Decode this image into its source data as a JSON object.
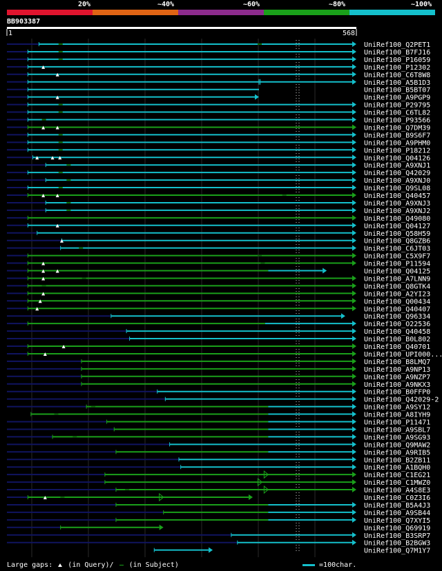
{
  "query_id": "BB903387",
  "scale": {
    "start_label": "1",
    "end_label": "568",
    "length": 568
  },
  "identity_legend": [
    {
      "label": "20%",
      "color": "#e0142e"
    },
    {
      "label": "~40%",
      "color": "#e06414"
    },
    {
      "label": "~60%",
      "color": "#8c2b8c"
    },
    {
      "label": "~80%",
      "color": "#1aa01a"
    },
    {
      "label": "~100%",
      "color": "#14c0cc"
    }
  ],
  "colors": {
    "cyan": "#14c0cc",
    "green": "#1aa01a",
    "navy": "#101460",
    "background": "#000000",
    "grid": "#2a2a2a"
  },
  "footer": {
    "large_gaps_label": "Large gaps:",
    "in_query_label": "(in Query)/",
    "in_subject_label": "(in Subject)",
    "bar_scale_label": "=100char."
  },
  "chart_data": {
    "type": "alignment-overview",
    "x_range": [
      1,
      568
    ],
    "hits": [
      {
        "label": "UniRef100_Q2PET1",
        "lead": 1,
        "start": 53,
        "end": 568,
        "color": "cyan",
        "arrow": true,
        "query_gaps": [],
        "subject_gaps": [
          87,
          410
        ]
      },
      {
        "label": "UniRef100_B7FJ16",
        "lead": 1,
        "start": 35,
        "end": 568,
        "color": "cyan",
        "arrow": true,
        "query_gaps": [],
        "subject_gaps": [
          87
        ]
      },
      {
        "label": "UniRef100_P16059",
        "lead": 1,
        "start": 35,
        "end": 568,
        "color": "cyan",
        "arrow": true,
        "query_gaps": [],
        "subject_gaps": [
          87
        ]
      },
      {
        "label": "UniRef100_P12302",
        "lead": 1,
        "start": 35,
        "end": 568,
        "color": "cyan",
        "arrow": true,
        "query_gaps": [
          60
        ],
        "subject_gaps": []
      },
      {
        "label": "UniRef100_C6T8W8",
        "lead": 1,
        "start": 35,
        "end": 568,
        "color": "cyan",
        "arrow": true,
        "query_gaps": [
          83
        ],
        "subject_gaps": []
      },
      {
        "label": "UniRef100_A5B1D3",
        "lead": 1,
        "start": 35,
        "end": 568,
        "color": "cyan",
        "arrow": true,
        "query_gaps": [],
        "subject_gaps": [],
        "end_ticks": [
          410,
          412
        ]
      },
      {
        "label": "UniRef100_B5BT07",
        "lead": 1,
        "start": 35,
        "end": 410,
        "color": "cyan",
        "arrow": false,
        "query_gaps": [],
        "subject_gaps": []
      },
      {
        "label": "UniRef100_A9PGP9",
        "lead": 1,
        "start": 35,
        "end": 410,
        "color": "cyan",
        "arrow": true,
        "query_gaps": [
          83
        ],
        "subject_gaps": []
      },
      {
        "label": "UniRef100_P29795",
        "lead": 1,
        "start": 35,
        "end": 568,
        "color": "cyan",
        "arrow": true,
        "query_gaps": [],
        "subject_gaps": [
          87
        ]
      },
      {
        "label": "UniRef100_C6TL82",
        "lead": 1,
        "start": 35,
        "end": 568,
        "color": "cyan",
        "arrow": true,
        "query_gaps": [],
        "subject_gaps": [
          87
        ]
      },
      {
        "label": "UniRef100_P93566",
        "lead": 1,
        "start": 35,
        "end": 568,
        "color": "cyan",
        "arrow": true,
        "query_gaps": [],
        "subject_gaps": [
          60
        ]
      },
      {
        "label": "UniRef100_Q7DM39",
        "lead": 1,
        "start": 35,
        "end": 568,
        "color": "green",
        "arrow": true,
        "query_gaps": [
          60,
          83
        ],
        "subject_gaps": []
      },
      {
        "label": "UniRef100_B9S6F7",
        "lead": 1,
        "start": 35,
        "end": 568,
        "color": "cyan",
        "arrow": true,
        "query_gaps": [],
        "subject_gaps": [
          87
        ]
      },
      {
        "label": "UniRef100_A9PHM0",
        "lead": 1,
        "start": 35,
        "end": 568,
        "color": "cyan",
        "arrow": true,
        "query_gaps": [],
        "subject_gaps": [
          87
        ]
      },
      {
        "label": "UniRef100_P18212",
        "lead": 1,
        "start": 35,
        "end": 568,
        "color": "cyan",
        "arrow": true,
        "query_gaps": [],
        "subject_gaps": [
          87
        ]
      },
      {
        "label": "UniRef100_Q04126",
        "lead": 1,
        "start": 43,
        "end": 568,
        "color": "cyan",
        "arrow": true,
        "query_gaps": [
          50,
          75,
          87
        ],
        "subject_gaps": []
      },
      {
        "label": "UniRef100_A9XNJ1",
        "lead": 1,
        "start": 64,
        "end": 568,
        "color": "cyan",
        "arrow": true,
        "query_gaps": [],
        "subject_gaps": [
          100
        ]
      },
      {
        "label": "UniRef100_Q42029",
        "lead": 1,
        "start": 35,
        "end": 568,
        "color": "cyan",
        "arrow": true,
        "query_gaps": [],
        "subject_gaps": [
          87
        ]
      },
      {
        "label": "UniRef100_A9XNJ0",
        "lead": 1,
        "start": 64,
        "end": 568,
        "color": "cyan",
        "arrow": true,
        "query_gaps": [],
        "subject_gaps": [
          100
        ]
      },
      {
        "label": "UniRef100_Q9SL08",
        "lead": 1,
        "start": 35,
        "end": 568,
        "color": "cyan",
        "arrow": true,
        "query_gaps": [],
        "subject_gaps": [
          87
        ]
      },
      {
        "label": "UniRef100_Q40457",
        "lead": 1,
        "start": 35,
        "end": 568,
        "color": "green",
        "arrow": true,
        "query_gaps": [
          60,
          83
        ],
        "subject_gaps": [
          450
        ]
      },
      {
        "label": "UniRef100_A9XNJ3",
        "lead": 1,
        "start": 64,
        "end": 568,
        "color": "cyan",
        "arrow": true,
        "query_gaps": [],
        "subject_gaps": [
          100
        ]
      },
      {
        "label": "UniRef100_A9XNJ2",
        "lead": 1,
        "start": 64,
        "end": 568,
        "color": "cyan",
        "arrow": true,
        "query_gaps": [],
        "subject_gaps": [
          100
        ]
      },
      {
        "label": "UniRef100_Q49080",
        "lead": 1,
        "start": 35,
        "end": 568,
        "color": "green",
        "arrow": true,
        "query_gaps": [],
        "subject_gaps": []
      },
      {
        "label": "UniRef100_Q04127",
        "lead": 1,
        "start": 35,
        "end": 568,
        "color": "cyan",
        "arrow": true,
        "query_gaps": [
          83
        ],
        "subject_gaps": []
      },
      {
        "label": "UniRef100_Q58H59",
        "lead": 1,
        "start": 50,
        "end": 568,
        "color": "cyan",
        "arrow": true,
        "query_gaps": [],
        "subject_gaps": []
      },
      {
        "label": "UniRef100_Q8GZB6",
        "lead": 1,
        "start": 90,
        "end": 568,
        "color": "cyan",
        "arrow": true,
        "query_gaps": [
          90
        ],
        "subject_gaps": []
      },
      {
        "label": "UniRef100_C6JT03",
        "lead": 1,
        "start": 88,
        "end": 568,
        "color": "cyan",
        "arrow": true,
        "query_gaps": [],
        "subject_gaps": [
          120
        ]
      },
      {
        "label": "UniRef100_C5X9F7",
        "lead": 1,
        "start": 35,
        "end": 568,
        "color": "green",
        "arrow": true,
        "query_gaps": [],
        "subject_gaps": [
          410
        ]
      },
      {
        "label": "UniRef100_P11594",
        "lead": 1,
        "start": 35,
        "end": 568,
        "color": "green",
        "arrow": true,
        "query_gaps": [
          60
        ],
        "subject_gaps": [
          415
        ]
      },
      {
        "label": "UniRef100_Q04125",
        "lead": 1,
        "start": 35,
        "end": 520,
        "color": "green",
        "arrow": true,
        "query_gaps": [
          60,
          83
        ],
        "subject_gaps": [],
        "cyan_from": 425
      },
      {
        "label": "UniRef100_A7LNN9",
        "lead": 1,
        "start": 35,
        "end": 568,
        "color": "green",
        "arrow": true,
        "query_gaps": [
          60
        ],
        "subject_gaps": [
          125
        ]
      },
      {
        "label": "UniRef100_Q8GTK4",
        "lead": 1,
        "start": 35,
        "end": 568,
        "color": "green",
        "arrow": true,
        "query_gaps": [],
        "subject_gaps": [
          60
        ]
      },
      {
        "label": "UniRef100_A2YI23",
        "lead": 1,
        "start": 35,
        "end": 568,
        "color": "green",
        "arrow": true,
        "query_gaps": [
          60
        ],
        "subject_gaps": []
      },
      {
        "label": "UniRef100_Q00434",
        "lead": 1,
        "start": 35,
        "end": 568,
        "color": "green",
        "arrow": true,
        "query_gaps": [
          55
        ],
        "subject_gaps": []
      },
      {
        "label": "UniRef100_Q40407",
        "lead": 1,
        "start": 35,
        "end": 568,
        "color": "green",
        "arrow": true,
        "query_gaps": [
          50
        ],
        "subject_gaps": []
      },
      {
        "label": "UniRef100_Q96334",
        "lead": 1,
        "start": 170,
        "end": 550,
        "color": "cyan",
        "arrow": true,
        "query_gaps": [],
        "subject_gaps": []
      },
      {
        "label": "UniRef100_O22536",
        "lead": 1,
        "start": 35,
        "end": 568,
        "color": "green",
        "arrow": true,
        "query_gaps": [],
        "subject_gaps": [],
        "cyan_from": 420
      },
      {
        "label": "UniRef100_Q40458",
        "lead": 1,
        "start": 195,
        "end": 568,
        "color": "cyan",
        "arrow": true,
        "query_gaps": [],
        "subject_gaps": []
      },
      {
        "label": "UniRef100_B0L802",
        "lead": 1,
        "start": 200,
        "end": 568,
        "color": "cyan",
        "arrow": true,
        "query_gaps": [],
        "subject_gaps": []
      },
      {
        "label": "UniRef100_Q40701",
        "lead": 1,
        "start": 35,
        "end": 568,
        "color": "green",
        "arrow": true,
        "query_gaps": [
          93
        ],
        "subject_gaps": []
      },
      {
        "label": "UniRef100_UPI000...",
        "lead": 1,
        "start": 35,
        "end": 568,
        "color": "green",
        "arrow": true,
        "query_gaps": [
          63
        ],
        "subject_gaps": []
      },
      {
        "label": "UniRef100_B8LMQ7",
        "lead": 1,
        "start": 122,
        "end": 568,
        "color": "green",
        "arrow": true,
        "query_gaps": [],
        "subject_gaps": []
      },
      {
        "label": "UniRef100_A9NP13",
        "lead": 1,
        "start": 122,
        "end": 568,
        "color": "green",
        "arrow": true,
        "query_gaps": [],
        "subject_gaps": []
      },
      {
        "label": "UniRef100_A9NZP7",
        "lead": 1,
        "start": 122,
        "end": 568,
        "color": "green",
        "arrow": true,
        "query_gaps": [],
        "subject_gaps": []
      },
      {
        "label": "UniRef100_A9NKX3",
        "lead": 1,
        "start": 122,
        "end": 568,
        "color": "green",
        "arrow": true,
        "query_gaps": [],
        "subject_gaps": []
      },
      {
        "label": "UniRef100_B0FFP0",
        "lead": 1,
        "start": 245,
        "end": 568,
        "color": "cyan",
        "arrow": true,
        "query_gaps": [],
        "subject_gaps": []
      },
      {
        "label": "UniRef100_Q42029-2",
        "lead": 1,
        "start": 258,
        "end": 568,
        "color": "cyan",
        "arrow": true,
        "query_gaps": [],
        "subject_gaps": []
      },
      {
        "label": "UniRef100_A9SY12",
        "lead": 1,
        "start": 130,
        "end": 568,
        "color": "green",
        "arrow": true,
        "query_gaps": [],
        "subject_gaps": [
          140
        ],
        "cyan_from": 425
      },
      {
        "label": "UniRef100_A8IYH9",
        "lead": 40,
        "start": 40,
        "end": 568,
        "color": "green",
        "arrow": true,
        "query_gaps": [],
        "subject_gaps": [
          80
        ],
        "cyan_from": 425
      },
      {
        "label": "UniRef100_P11471",
        "lead": 1,
        "start": 163,
        "end": 568,
        "color": "green",
        "arrow": true,
        "query_gaps": [],
        "subject_gaps": [],
        "cyan_from": 425
      },
      {
        "label": "UniRef100_A9SBL7",
        "lead": 1,
        "start": 175,
        "end": 568,
        "color": "green",
        "arrow": true,
        "query_gaps": [],
        "subject_gaps": [],
        "cyan_from": 425
      },
      {
        "label": "UniRef100_A9SG93",
        "lead": 1,
        "start": 75,
        "end": 568,
        "color": "green",
        "arrow": true,
        "query_gaps": [],
        "subject_gaps": [
          110
        ],
        "cyan_from": 425
      },
      {
        "label": "UniRef100_Q9MAW2",
        "lead": 1,
        "start": 265,
        "end": 568,
        "color": "cyan",
        "arrow": true,
        "query_gaps": [],
        "subject_gaps": []
      },
      {
        "label": "UniRef100_A9RIB5",
        "lead": 1,
        "start": 178,
        "end": 568,
        "color": "green",
        "arrow": true,
        "query_gaps": [],
        "subject_gaps": [],
        "cyan_from": 425
      },
      {
        "label": "UniRef100_B2ZB11",
        "lead": 1,
        "start": 280,
        "end": 568,
        "color": "cyan",
        "arrow": true,
        "query_gaps": [],
        "subject_gaps": []
      },
      {
        "label": "UniRef100_A1BQH0",
        "lead": 1,
        "start": 283,
        "end": 568,
        "color": "cyan",
        "arrow": true,
        "query_gaps": [],
        "subject_gaps": []
      },
      {
        "label": "UniRef100_C1EG21",
        "lead": 1,
        "start": 160,
        "end": 568,
        "color": "green",
        "arrow": true,
        "query_gaps": [],
        "subject_gaps": [],
        "mid_arrows": [
          425
        ]
      },
      {
        "label": "UniRef100_C1MWZ0",
        "lead": 1,
        "start": 160,
        "end": 568,
        "color": "green",
        "arrow": true,
        "query_gaps": [],
        "subject_gaps": [],
        "mid_arrows": [
          415
        ]
      },
      {
        "label": "UniRef100_A4S8E3",
        "lead": 1,
        "start": 178,
        "end": 568,
        "color": "green",
        "arrow": true,
        "query_gaps": [],
        "subject_gaps": [
          195
        ],
        "mid_arrows": [
          425
        ]
      },
      {
        "label": "UniRef100_C0Z3I6",
        "lead": 1,
        "start": 35,
        "end": 400,
        "color": "green",
        "arrow": true,
        "query_gaps": [
          63
        ],
        "subject_gaps": [
          90
        ],
        "mid_arrows": [
          255
        ]
      },
      {
        "label": "UniRef100_B5A4J3",
        "lead": 1,
        "start": 178,
        "end": 568,
        "color": "green",
        "arrow": true,
        "query_gaps": [],
        "subject_gaps": [],
        "cyan_from": 425
      },
      {
        "label": "UniRef100_A9SB44",
        "lead": 1,
        "start": 255,
        "end": 568,
        "color": "green",
        "arrow": true,
        "query_gaps": [],
        "subject_gaps": [],
        "cyan_from": 425
      },
      {
        "label": "UniRef100_Q7XYI5",
        "lead": 1,
        "start": 178,
        "end": 568,
        "color": "green",
        "arrow": true,
        "query_gaps": [],
        "subject_gaps": [],
        "cyan_from": 425
      },
      {
        "label": "UniRef100_Q69919",
        "lead": 1,
        "start": 88,
        "end": 255,
        "color": "green",
        "arrow": true,
        "query_gaps": [],
        "subject_gaps": []
      },
      {
        "label": "UniRef100_B3SRP7",
        "lead": 1,
        "start": 365,
        "end": 568,
        "color": "cyan",
        "arrow": true,
        "query_gaps": [],
        "subject_gaps": []
      },
      {
        "label": "UniRef100_B2BGW3",
        "lead": 1,
        "start": 375,
        "end": 568,
        "color": "cyan",
        "arrow": true,
        "query_gaps": [],
        "subject_gaps": []
      },
      {
        "label": "UniRef100_Q7M1Y7",
        "lead": 240,
        "start": 240,
        "end": 335,
        "color": "cyan",
        "arrow": true,
        "query_gaps": [],
        "subject_gaps": []
      }
    ]
  }
}
